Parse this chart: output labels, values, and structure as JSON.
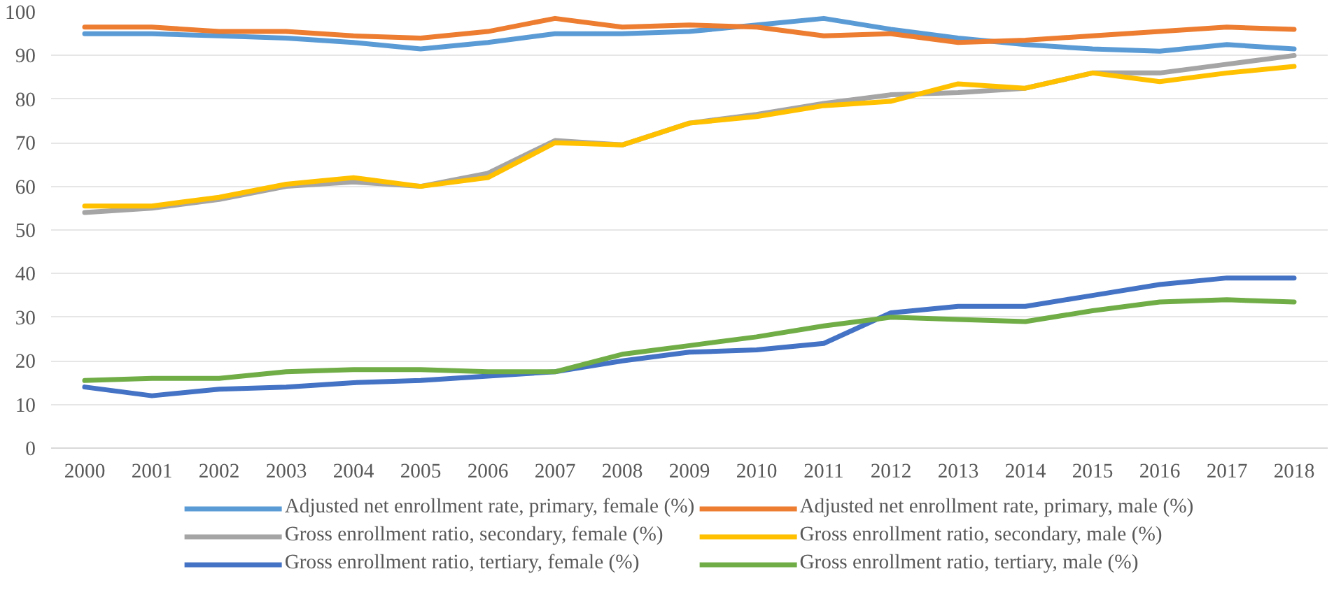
{
  "chart_data": {
    "type": "line",
    "categories": [
      "2000",
      "2001",
      "2002",
      "2003",
      "2004",
      "2005",
      "2006",
      "2007",
      "2008",
      "2009",
      "2010",
      "2011",
      "2012",
      "2013",
      "2014",
      "2015",
      "2016",
      "2017",
      "2018"
    ],
    "ylim": [
      0,
      100
    ],
    "yticks": [
      0,
      10,
      20,
      30,
      40,
      50,
      60,
      70,
      80,
      90,
      100
    ],
    "grid": "y",
    "legend": "bottom",
    "series": [
      {
        "name": "Adjusted net enrollment rate, primary, female (%)",
        "color": "#5b9bd5",
        "values": [
          95,
          95,
          94.5,
          94,
          93,
          91.5,
          93,
          95,
          95,
          95.5,
          97,
          98.5,
          96,
          94,
          92.5,
          91.5,
          91,
          92.5,
          91.5
        ]
      },
      {
        "name": "Adjusted net enrollment rate, primary, male (%)",
        "color": "#ed7d31",
        "values": [
          96.5,
          96.5,
          95.5,
          95.5,
          94.5,
          94,
          95.5,
          98.5,
          96.5,
          97,
          96.5,
          94.5,
          95,
          93,
          93.5,
          94.5,
          95.5,
          96.5,
          96
        ]
      },
      {
        "name": "Gross enrollment ratio, secondary, female (%)",
        "color": "#a5a5a5",
        "values": [
          54,
          55,
          57,
          60,
          61,
          60,
          63,
          70.5,
          69.5,
          74.5,
          76.5,
          79,
          81,
          81.5,
          82.5,
          86,
          86,
          88,
          90
        ]
      },
      {
        "name": "Gross enrollment ratio, secondary, male (%)",
        "color": "#ffc000",
        "values": [
          55.5,
          55.5,
          57.5,
          60.5,
          62,
          60,
          62,
          70,
          69.5,
          74.5,
          76,
          78.5,
          79.5,
          83.5,
          82.5,
          86,
          84,
          86,
          87.5
        ]
      },
      {
        "name": "Gross enrollment ratio, tertiary, female (%)",
        "color": "#4472c4",
        "values": [
          14,
          12,
          13.5,
          14,
          15,
          15.5,
          16.5,
          17.5,
          20,
          22,
          22.5,
          24,
          31,
          32.5,
          32.5,
          35,
          37.5,
          39,
          39
        ]
      },
      {
        "name": "Gross enrollment ratio, tertiary, male (%)",
        "color": "#70ad47",
        "values": [
          15.5,
          16,
          16,
          17.5,
          18,
          18,
          17.5,
          17.5,
          21.5,
          23.5,
          25.5,
          28,
          30,
          29.5,
          29,
          31.5,
          33.5,
          34,
          33.5
        ]
      }
    ]
  }
}
